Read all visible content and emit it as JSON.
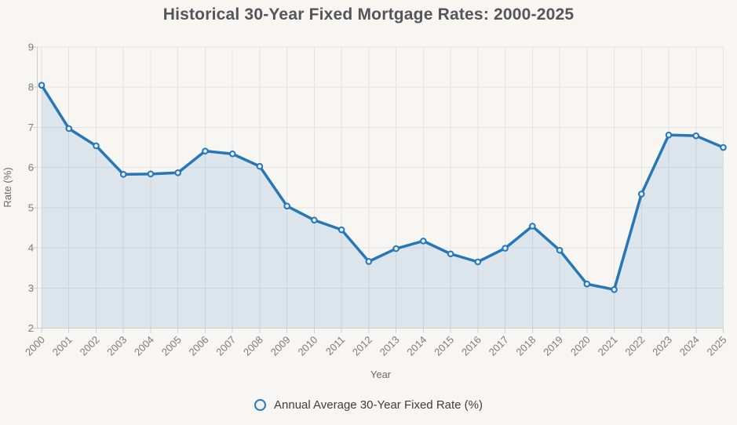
{
  "page": {
    "background_color": "#f7f6f3"
  },
  "title": "Historical 30-Year Fixed Mortgage Rates: 2000-2025",
  "legend": {
    "marker": "circle-icon",
    "label": "Annual Average 30-Year Fixed Rate (%)"
  },
  "chart_data": {
    "type": "line",
    "title": "Historical 30-Year Fixed Mortgage Rates: 2000-2025",
    "xlabel": "Year",
    "ylabel": "Rate (%)",
    "ylim": [
      2,
      9
    ],
    "yticks": [
      2,
      3,
      4,
      5,
      6,
      7,
      8,
      9
    ],
    "grid": true,
    "legend_position": "bottom",
    "area_fill": true,
    "marker_style": "circle",
    "x_tick_rotation": -45,
    "categories": [
      "2000",
      "2001",
      "2002",
      "2003",
      "2004",
      "2005",
      "2006",
      "2007",
      "2008",
      "2009",
      "2010",
      "2011",
      "2012",
      "2013",
      "2014",
      "2015",
      "2016",
      "2017",
      "2018",
      "2019",
      "2020",
      "2021",
      "2022",
      "2023",
      "2024",
      "2025"
    ],
    "series": [
      {
        "name": "Annual Average 30-Year Fixed Rate (%)",
        "values": [
          8.05,
          6.97,
          6.54,
          5.83,
          5.84,
          5.87,
          6.41,
          6.34,
          6.03,
          5.04,
          4.69,
          4.45,
          3.66,
          3.98,
          4.17,
          3.85,
          3.65,
          3.99,
          4.54,
          3.94,
          3.1,
          2.96,
          5.34,
          6.81,
          6.79,
          6.5
        ]
      }
    ],
    "colors": {
      "line": "#2777b6",
      "area_fill": "rgba(39,119,182,0.13)",
      "marker_fill": "#e3edf7",
      "grid": "#e4e3e0",
      "axis_border": "#cfcecb",
      "title_text": "#545556",
      "tick_text": "#7b7b7b",
      "axis_title_text": "#6b6b6b",
      "legend_text": "#3e3e3e"
    }
  }
}
